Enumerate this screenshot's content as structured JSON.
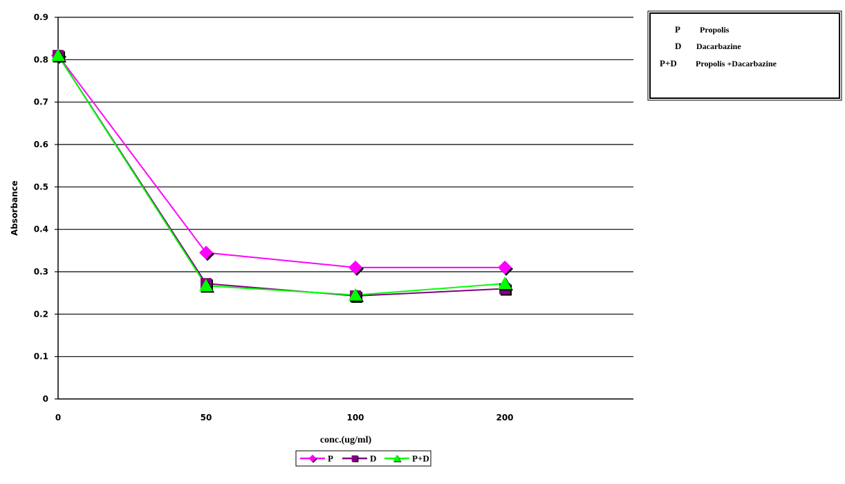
{
  "chart_data": {
    "type": "line",
    "title": "",
    "xlabel": "conc.(ug/ml)",
    "ylabel": "Absorbance",
    "categories": [
      "0",
      "50",
      "100",
      "200"
    ],
    "ylim": [
      0,
      0.9
    ],
    "yticks": [
      "0",
      "0.1",
      "0.2",
      "0.3",
      "0.4",
      "0.5",
      "0.6",
      "0.7",
      "0.8",
      "0.9"
    ],
    "grid": true,
    "legend_position": "bottom-center",
    "series": [
      {
        "name": "P",
        "values": [
          0.81,
          0.345,
          0.31,
          0.31
        ],
        "color": "#ff00ff",
        "marker": "diamond"
      },
      {
        "name": "D",
        "values": [
          0.81,
          0.272,
          0.243,
          0.26
        ],
        "color": "#800080",
        "marker": "square"
      },
      {
        "name": "P+D",
        "values": [
          0.81,
          0.267,
          0.245,
          0.272
        ],
        "color": "#00ff00",
        "marker": "triangle"
      }
    ]
  },
  "key_box": {
    "entries": [
      {
        "abbr": "P",
        "text": "Propolis"
      },
      {
        "abbr": "D",
        "text": "Dacarbazine"
      },
      {
        "abbr": "P+D",
        "text": "Propolis +Dacarbazine"
      }
    ]
  }
}
